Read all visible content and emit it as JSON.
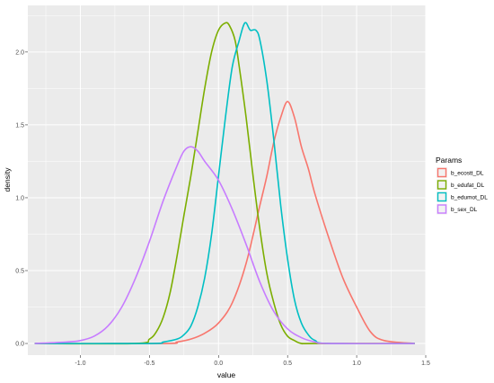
{
  "chart_data": {
    "type": "line",
    "xlabel": "value",
    "ylabel": "density",
    "xlim": [
      -1.38,
      1.5
    ],
    "ylim": [
      -0.08,
      2.32
    ],
    "x_ticks": [
      -1.0,
      -0.5,
      0.0,
      0.5,
      1.0,
      1.5
    ],
    "x_tick_labels": [
      "-1.0",
      "-0.5",
      "0.0",
      "0.5",
      "1.0",
      "1.5"
    ],
    "y_ticks": [
      0.0,
      0.5,
      1.0,
      1.5,
      2.0
    ],
    "y_tick_labels": [
      "0.0",
      "0.5",
      "1.0",
      "1.5",
      "2.0"
    ],
    "grid": true,
    "legend": {
      "title": "Params",
      "position": "right",
      "entries": [
        "b_ecostt_DL",
        "b_edufat_DL",
        "b_edumot_DL",
        "b_sex_DL"
      ]
    },
    "series": [
      {
        "name": "b_ecostt_DL",
        "color": "#F8766D",
        "x": [
          -1.33,
          -0.4,
          -0.3,
          -0.2,
          -0.1,
          0.0,
          0.1,
          0.2,
          0.3,
          0.35,
          0.4,
          0.45,
          0.5,
          0.55,
          0.6,
          0.65,
          0.7,
          0.8,
          0.9,
          1.0,
          1.1,
          1.2,
          1.42
        ],
        "y": [
          0.0,
          0.0,
          0.01,
          0.03,
          0.07,
          0.14,
          0.28,
          0.55,
          0.95,
          1.15,
          1.38,
          1.55,
          1.66,
          1.55,
          1.35,
          1.2,
          1.02,
          0.72,
          0.45,
          0.25,
          0.08,
          0.02,
          0.0
        ]
      },
      {
        "name": "b_edufat_DL",
        "color": "#7CAE00",
        "x": [
          -1.33,
          -0.6,
          -0.5,
          -0.45,
          -0.4,
          -0.35,
          -0.3,
          -0.25,
          -0.2,
          -0.15,
          -0.1,
          -0.05,
          0.0,
          0.05,
          0.08,
          0.12,
          0.15,
          0.2,
          0.25,
          0.3,
          0.35,
          0.4,
          0.45,
          0.5,
          0.55,
          0.6,
          0.7,
          1.42
        ],
        "y": [
          0.0,
          0.0,
          0.03,
          0.08,
          0.18,
          0.35,
          0.6,
          0.88,
          1.15,
          1.45,
          1.75,
          2.0,
          2.15,
          2.2,
          2.18,
          2.08,
          1.9,
          1.55,
          1.15,
          0.78,
          0.48,
          0.28,
          0.13,
          0.05,
          0.02,
          0.0,
          0.0,
          0.0
        ]
      },
      {
        "name": "b_edumot_DL",
        "color": "#00BFC4",
        "x": [
          -1.33,
          -0.5,
          -0.4,
          -0.3,
          -0.25,
          -0.2,
          -0.15,
          -0.1,
          -0.05,
          0.0,
          0.05,
          0.1,
          0.15,
          0.18,
          0.2,
          0.23,
          0.27,
          0.3,
          0.35,
          0.4,
          0.45,
          0.5,
          0.55,
          0.6,
          0.65,
          0.7,
          0.8,
          1.42
        ],
        "y": [
          0.0,
          0.0,
          0.01,
          0.03,
          0.06,
          0.12,
          0.25,
          0.45,
          0.75,
          1.15,
          1.55,
          1.9,
          2.08,
          2.18,
          2.2,
          2.15,
          2.15,
          2.08,
          1.8,
          1.4,
          0.95,
          0.58,
          0.3,
          0.14,
          0.06,
          0.02,
          0.0,
          0.0
        ]
      },
      {
        "name": "b_sex_DL",
        "color": "#C77CFF",
        "x": [
          -1.33,
          -1.1,
          -1.0,
          -0.9,
          -0.8,
          -0.7,
          -0.6,
          -0.5,
          -0.4,
          -0.3,
          -0.25,
          -0.2,
          -0.15,
          -0.1,
          0.0,
          0.1,
          0.2,
          0.3,
          0.4,
          0.5,
          0.6,
          0.7,
          0.8,
          1.42
        ],
        "y": [
          0.0,
          0.01,
          0.02,
          0.05,
          0.12,
          0.25,
          0.45,
          0.7,
          0.98,
          1.22,
          1.32,
          1.35,
          1.32,
          1.25,
          1.12,
          0.92,
          0.68,
          0.42,
          0.22,
          0.1,
          0.04,
          0.01,
          0.0,
          0.0
        ]
      }
    ]
  }
}
